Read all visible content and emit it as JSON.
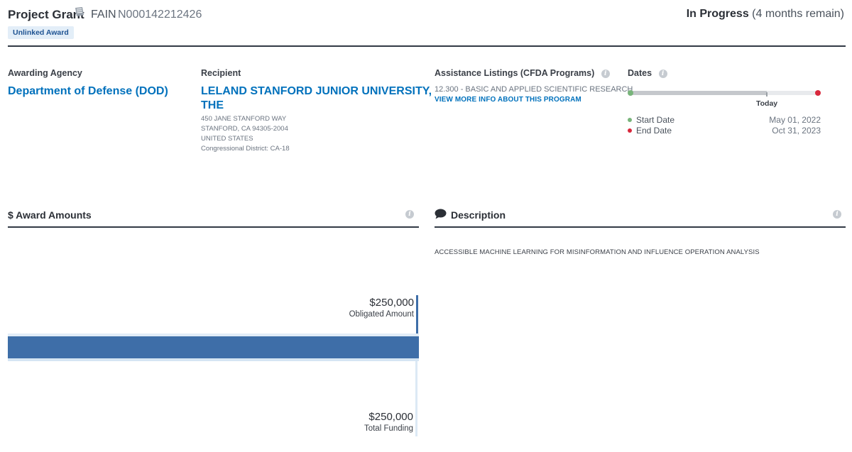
{
  "header": {
    "award_type": "Project Grant",
    "fain_label": "FAIN",
    "fain_value": "N000142212426",
    "badge": "Unlinked Award",
    "status": "In Progress",
    "status_remaining": "(4 months remain)"
  },
  "awarding_agency": {
    "label": "Awarding Agency",
    "name": "Department of Defense (DOD)"
  },
  "recipient": {
    "label": "Recipient",
    "name_line1": "LELAND STANFORD JUNIOR UNIVERSITY,",
    "name_line2": "THE",
    "address": [
      "450 JANE STANFORD WAY",
      "STANFORD, CA 94305-2004",
      "UNITED STATES",
      "Congressional District: CA-18"
    ]
  },
  "cfda": {
    "label": "Assistance Listings (CFDA Programs)",
    "program": "12.300 - BASIC AND APPLIED SCIENTIFIC RESEARCH",
    "link": "VIEW MORE INFO ABOUT THIS PROGRAM"
  },
  "dates": {
    "label": "Dates",
    "today_label": "Today",
    "start_label": "Start Date",
    "start_value": "May 01, 2022",
    "end_label": "End Date",
    "end_value": "Oct 31, 2023",
    "elapsed_fraction": 0.73,
    "colors": {
      "start": "#78b47a",
      "end": "#d8283c"
    }
  },
  "award_amounts": {
    "title": "$ Award Amounts",
    "obligated_value": "$250,000",
    "obligated_label": "Obligated Amount",
    "funding_value": "$250,000",
    "funding_label": "Total Funding",
    "bar_color": "#3e6ea8"
  },
  "description": {
    "title": "Description",
    "text": "ACCESSIBLE MACHINE LEARNING FOR MISINFORMATION AND INFLUENCE OPERATION ANALYSIS"
  },
  "icons": {
    "info": "info-icon",
    "document": "document-icon",
    "comment": "comment-icon"
  }
}
